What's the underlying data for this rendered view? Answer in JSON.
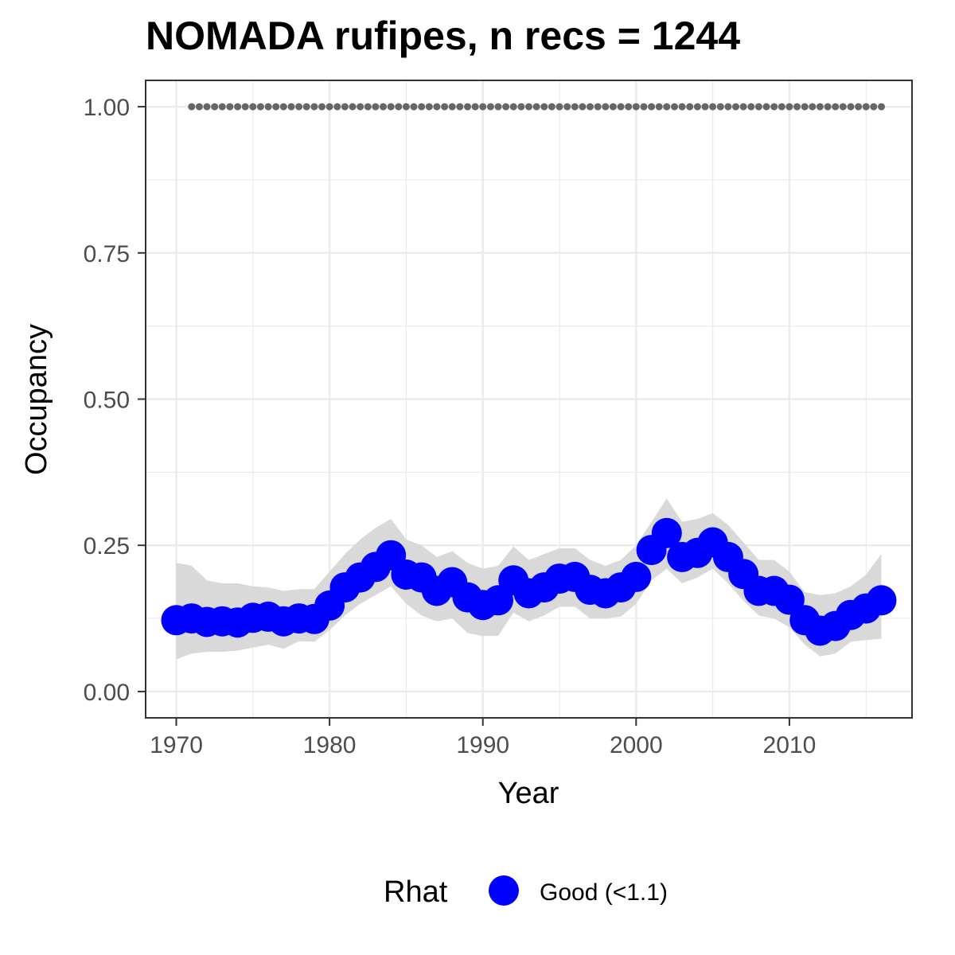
{
  "chart_data": {
    "type": "line",
    "title": "NOMADA rufipes, n recs = 1244",
    "xlabel": "Year",
    "ylabel": "Occupancy",
    "xlim": [
      1968,
      2018
    ],
    "ylim": [
      -0.045,
      1.045
    ],
    "x_ticks": [
      1970,
      1980,
      1990,
      2000,
      2010
    ],
    "x_tick_labels": [
      "1970",
      "1980",
      "1990",
      "2000",
      "2010"
    ],
    "y_ticks": [
      0,
      0.25,
      0.5,
      0.75,
      1.0
    ],
    "y_tick_labels": [
      "0.00",
      "0.25",
      "0.50",
      "0.75",
      "1.00"
    ],
    "grid": true,
    "legend": {
      "title": "Rhat",
      "position": "bottom",
      "entries": [
        {
          "label": "Good (<1.1)",
          "color": "#0000ff"
        }
      ]
    },
    "colors": {
      "points": "#0000ff",
      "ribbon": "#d9d9d9",
      "dotted_line": "#666666",
      "panel_border": "#333333",
      "grid": "#ebebeb"
    },
    "reference_line": {
      "y": 1.0,
      "x_start": 1971,
      "x_end": 2016,
      "style": "dotted"
    },
    "x": [
      1970,
      1971,
      1972,
      1973,
      1974,
      1975,
      1976,
      1977,
      1978,
      1979,
      1980,
      1981,
      1982,
      1983,
      1984,
      1985,
      1986,
      1987,
      1988,
      1989,
      1990,
      1991,
      1992,
      1993,
      1994,
      1995,
      1996,
      1997,
      1998,
      1999,
      2000,
      2001,
      2002,
      2003,
      2004,
      2005,
      2006,
      2007,
      2008,
      2009,
      2010,
      2011,
      2012,
      2013,
      2014,
      2015,
      2016
    ],
    "series": [
      {
        "name": "Good (<1.1)",
        "values": [
          0.122,
          0.125,
          0.119,
          0.12,
          0.118,
          0.126,
          0.128,
          0.12,
          0.125,
          0.124,
          0.147,
          0.178,
          0.195,
          0.213,
          0.233,
          0.2,
          0.195,
          0.172,
          0.187,
          0.161,
          0.148,
          0.156,
          0.19,
          0.168,
          0.178,
          0.193,
          0.196,
          0.174,
          0.168,
          0.178,
          0.196,
          0.242,
          0.271,
          0.23,
          0.237,
          0.255,
          0.23,
          0.201,
          0.172,
          0.172,
          0.157,
          0.122,
          0.104,
          0.112,
          0.131,
          0.142,
          0.156
        ],
        "lower": [
          0.055,
          0.065,
          0.068,
          0.068,
          0.07,
          0.075,
          0.08,
          0.073,
          0.086,
          0.085,
          0.105,
          0.13,
          0.15,
          0.165,
          0.18,
          0.15,
          0.13,
          0.12,
          0.125,
          0.1,
          0.095,
          0.095,
          0.135,
          0.12,
          0.13,
          0.145,
          0.145,
          0.125,
          0.125,
          0.128,
          0.15,
          0.19,
          0.21,
          0.185,
          0.195,
          0.21,
          0.185,
          0.155,
          0.13,
          0.125,
          0.11,
          0.08,
          0.06,
          0.065,
          0.085,
          0.088,
          0.09
        ],
        "upper": [
          0.22,
          0.215,
          0.19,
          0.185,
          0.185,
          0.18,
          0.178,
          0.172,
          0.175,
          0.175,
          0.205,
          0.235,
          0.26,
          0.28,
          0.295,
          0.26,
          0.25,
          0.23,
          0.24,
          0.22,
          0.21,
          0.215,
          0.248,
          0.225,
          0.235,
          0.245,
          0.245,
          0.225,
          0.215,
          0.225,
          0.25,
          0.29,
          0.33,
          0.29,
          0.295,
          0.305,
          0.285,
          0.255,
          0.225,
          0.225,
          0.205,
          0.17,
          0.165,
          0.168,
          0.18,
          0.2,
          0.235
        ]
      }
    ]
  }
}
